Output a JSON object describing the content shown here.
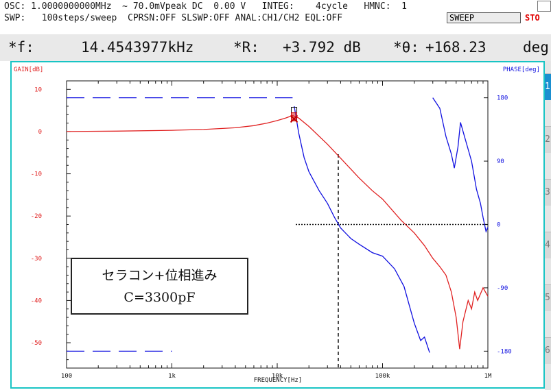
{
  "status": {
    "line1": "OSC: 1.0000000000MHz  ∼ 70.0mVpeak DC  0.00 V   INTEG:    4cycle   HMNC:  1",
    "line2": "SWP:   100steps/sweep  CPRSN:OFF SLSWP:OFF ANAL:CH1/CH2 EQL:OFF",
    "sweep_label": "SWEEP",
    "stop_label": "STO"
  },
  "marker": {
    "f_label": "*f:",
    "f_value": "14.4543977kHz",
    "r_label": "*R:",
    "r_value": "+3.792 dB",
    "theta_label": "*θ:",
    "theta_value": "+168.23",
    "theta_unit": "deg"
  },
  "side_tabs": [
    "1",
    "2",
    "3",
    "4",
    "5",
    "6"
  ],
  "annotation": {
    "line1": "セラコン+位相進み",
    "line2": "C=3300pF"
  },
  "colors": {
    "gain": "#e02020",
    "phase": "#1010e0",
    "frame": "#18c4c4",
    "left_axis_text": "#e02020",
    "right_axis_text": "#1010e0"
  },
  "chart_data": {
    "type": "line",
    "xscale": "log",
    "xlabel": "FREQUENCY[Hz]",
    "ylabel_left": "GAIN[dB]",
    "ylabel_right": "PHASE[deg]",
    "xlim": [
      100,
      1000000
    ],
    "ylim_left": [
      -56,
      12
    ],
    "ylim_right": [
      -204,
      204
    ],
    "x_ticks": [
      {
        "v": 100,
        "label": "100"
      },
      {
        "v": 1000,
        "label": "1k"
      },
      {
        "v": 10000,
        "label": "10k"
      },
      {
        "v": 100000,
        "label": "100k"
      },
      {
        "v": 1000000,
        "label": "1M"
      }
    ],
    "y_ticks_left": [
      10,
      0,
      -10,
      -20,
      -30,
      -40,
      -50
    ],
    "y_ticks_right": [
      180,
      90,
      0,
      -90,
      -180
    ],
    "series": [
      {
        "axis": "left",
        "points": [
          [
            100,
            0
          ],
          [
            300,
            0.1
          ],
          [
            1000,
            0.3
          ],
          [
            2000,
            0.5
          ],
          [
            4000,
            0.9
          ],
          [
            6000,
            1.4
          ],
          [
            8000,
            2.0
          ],
          [
            10000,
            2.6
          ],
          [
            12000,
            3.2
          ],
          [
            14000,
            3.8
          ],
          [
            16000,
            3.2
          ],
          [
            20000,
            1.2
          ],
          [
            30000,
            -3
          ],
          [
            40000,
            -6.3
          ],
          [
            60000,
            -11
          ],
          [
            80000,
            -14
          ],
          [
            100000,
            -16
          ],
          [
            150000,
            -21
          ],
          [
            200000,
            -24
          ],
          [
            250000,
            -27
          ],
          [
            300000,
            -30
          ],
          [
            350000,
            -32
          ],
          [
            400000,
            -34
          ],
          [
            450000,
            -38
          ],
          [
            500000,
            -44
          ],
          [
            540000,
            -51.5
          ],
          [
            580000,
            -45
          ],
          [
            650000,
            -40
          ],
          [
            700000,
            -42
          ],
          [
            750000,
            -38
          ],
          [
            800000,
            -40
          ],
          [
            900000,
            -37
          ],
          [
            1000000,
            -39
          ]
        ]
      },
      {
        "axis": "right",
        "points": [
          [
            14500,
            168
          ],
          [
            16000,
            130
          ],
          [
            18000,
            95
          ],
          [
            20000,
            75
          ],
          [
            25000,
            48
          ],
          [
            30000,
            30
          ],
          [
            35000,
            10
          ],
          [
            40000,
            -5
          ],
          [
            50000,
            -20
          ],
          [
            60000,
            -28
          ],
          [
            80000,
            -40
          ],
          [
            100000,
            -45
          ],
          [
            130000,
            -63
          ],
          [
            160000,
            -88
          ],
          [
            200000,
            -140
          ],
          [
            230000,
            -165
          ],
          [
            250000,
            -160
          ],
          [
            280000,
            -182
          ]
        ]
      },
      {
        "axis": "right",
        "points": [
          [
            300000,
            180
          ],
          [
            350000,
            165
          ],
          [
            400000,
            125
          ],
          [
            450000,
            100
          ],
          [
            480000,
            80
          ],
          [
            520000,
            110
          ],
          [
            550000,
            145
          ],
          [
            600000,
            125
          ],
          [
            700000,
            90
          ],
          [
            780000,
            50
          ],
          [
            850000,
            30
          ],
          [
            900000,
            10
          ],
          [
            960000,
            -10
          ],
          [
            1000000,
            -4
          ]
        ]
      },
      {
        "axis": "right",
        "style": "dashed",
        "points": [
          [
            100,
            180
          ],
          [
            14000,
            180
          ]
        ]
      },
      {
        "axis": "right",
        "style": "dashed",
        "points": [
          [
            100,
            -180
          ],
          [
            1000,
            -180
          ]
        ]
      }
    ],
    "markers": [
      {
        "x": 14450,
        "y": 3.8,
        "symbol": "square"
      },
      {
        "x": 14450,
        "y": 3.0,
        "symbol": "x"
      }
    ],
    "cursors": {
      "vertical_x": 38000,
      "horizontal_phase": 0,
      "horizontal_from_x": 15000
    }
  }
}
